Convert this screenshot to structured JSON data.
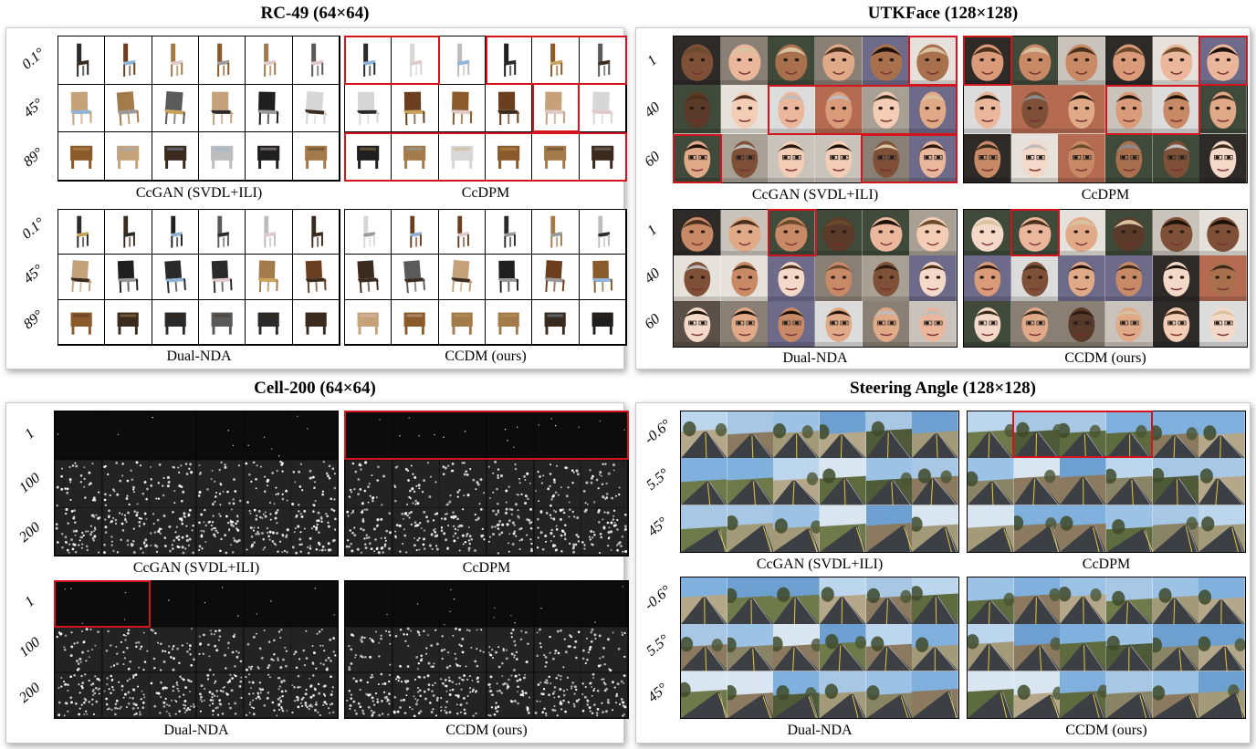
{
  "panels": [
    {
      "key": "rc49",
      "title": "RC-49 (64×64)",
      "kind": "chair",
      "labels": [
        "0.1°",
        "45°",
        "89°"
      ],
      "captions": [
        "CcGAN (SVDL+ILI)",
        "CcDPM",
        "Dual-NDA",
        "CCDM (ours)"
      ]
    },
    {
      "key": "utkface",
      "title": "UTKFace (128×128)",
      "kind": "face",
      "labels": [
        "1",
        "40",
        "60"
      ],
      "captions": [
        "CcGAN (SVDL+ILI)",
        "CcDPM",
        "Dual-NDA",
        "CCDM (ours)"
      ]
    },
    {
      "key": "cell200",
      "title": "Cell-200 (64×64)",
      "kind": "cell",
      "labels": [
        "1",
        "100",
        "200"
      ],
      "captions": [
        "CcGAN (SVDL+ILI)",
        "CcDPM",
        "Dual-NDA",
        "CCDM (ours)"
      ]
    },
    {
      "key": "steering",
      "title": "Steering Angle (128×128)",
      "kind": "road",
      "labels": [
        "-0.6°",
        "5.5°",
        "45°"
      ],
      "captions": [
        "CcGAN (SVDL+ILI)",
        "CcDPM",
        "Dual-NDA",
        "CCDM (ours)"
      ]
    }
  ],
  "colors": {
    "highlight": "#d4141c",
    "panel_border": "#c9c9c9"
  }
}
